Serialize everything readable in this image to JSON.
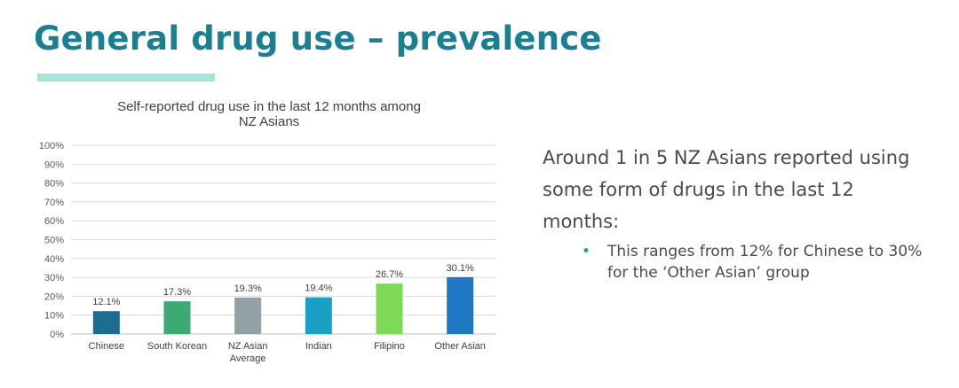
{
  "slide": {
    "title": "General drug use – prevalence",
    "body_text": "Around 1 in 5 NZ Asians reported using some form of drugs in the last 12 months:",
    "bullets": [
      "This ranges from 12% for Chinese to 30% for the ‘Other Asian’ group"
    ]
  },
  "chart_data": {
    "type": "bar",
    "title": [
      "Self-reported drug use in the last 12 months among",
      "NZ Asians"
    ],
    "categories": [
      [
        "Chinese"
      ],
      [
        "South Korean"
      ],
      [
        "NZ Asian",
        "Average"
      ],
      [
        "Indian"
      ],
      [
        "Filipino"
      ],
      [
        "Other Asian"
      ]
    ],
    "values": [
      12.1,
      17.3,
      19.3,
      19.4,
      26.7,
      30.1
    ],
    "data_labels": [
      "12.1%",
      "17.3%",
      "19.3%",
      "19.4%",
      "26.7%",
      "30.1%"
    ],
    "colors": [
      "#1b6e8f",
      "#3daa73",
      "#93a1a4",
      "#1c9fc4",
      "#7ed957",
      "#1f78c1"
    ],
    "ylim": [
      0,
      100
    ],
    "yticks": [
      "0%",
      "10%",
      "20%",
      "30%",
      "40%",
      "50%",
      "60%",
      "70%",
      "80%",
      "90%",
      "100%"
    ],
    "grid": true,
    "legend": "none"
  }
}
